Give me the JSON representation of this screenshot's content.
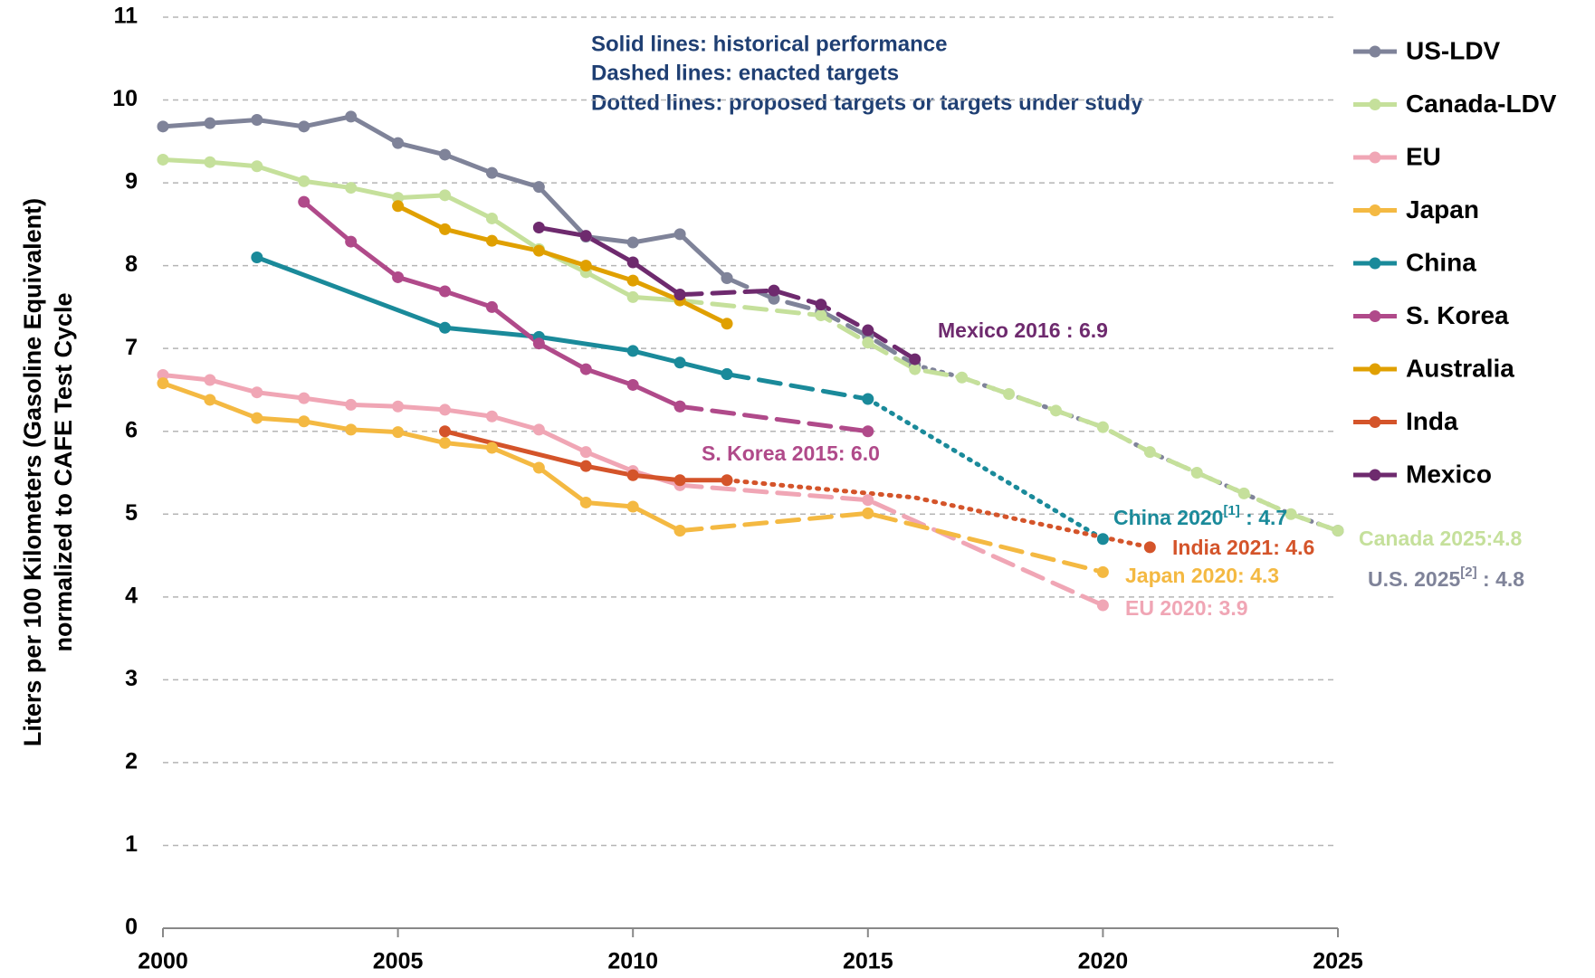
{
  "chart_data": {
    "type": "line",
    "ylabel": [
      "Liters per 100 Kilometers  (Gasoline Equivalent)",
      "normalized to CAFE Test Cycle"
    ],
    "notes": [
      "Solid lines: historical performance",
      "Dashed lines: enacted targets",
      "Dotted lines: proposed targets or targets under study"
    ],
    "xlim": [
      2000,
      2025
    ],
    "xticks": [
      2000,
      2005,
      2010,
      2015,
      2020,
      2025
    ],
    "ylim": [
      0,
      11
    ],
    "yticks": [
      0,
      1,
      2,
      3,
      4,
      5,
      6,
      7,
      8,
      9,
      10,
      11
    ],
    "grid": true,
    "legend": "right",
    "series": [
      {
        "name": "US-LDV",
        "color": "#7f8399",
        "segments": [
          {
            "style": "solid",
            "x": [
              2000,
              2001,
              2002,
              2003,
              2004,
              2005,
              2006,
              2007,
              2008,
              2009,
              2010,
              2011,
              2012
            ],
            "values": [
              9.68,
              9.72,
              9.76,
              9.68,
              9.8,
              9.48,
              9.34,
              9.12,
              8.95,
              8.35,
              8.28,
              8.38,
              7.85
            ]
          },
          {
            "style": "dashed",
            "x": [
              2012,
              2013,
              2014,
              2015,
              2016
            ],
            "values": [
              7.85,
              7.6,
              7.45,
              7.15,
              6.8
            ]
          },
          {
            "style": "dotted",
            "x": [
              2016,
              2017,
              2018,
              2019,
              2020,
              2021,
              2022,
              2023,
              2024,
              2025
            ],
            "values": [
              6.8,
              6.65,
              6.45,
              6.25,
              6.05,
              5.75,
              5.5,
              5.25,
              5.0,
              4.8
            ]
          }
        ]
      },
      {
        "name": "Canada-LDV",
        "color": "#c5e09b",
        "segments": [
          {
            "style": "solid",
            "x": [
              2000,
              2001,
              2002,
              2003,
              2004,
              2005,
              2006,
              2007,
              2008,
              2009,
              2010,
              2011
            ],
            "values": [
              9.28,
              9.25,
              9.2,
              9.02,
              8.94,
              8.82,
              8.85,
              8.57,
              8.2,
              7.92,
              7.62,
              7.58
            ]
          },
          {
            "style": "dashed",
            "x": [
              2011,
              2014,
              2015,
              2016,
              2017,
              2018,
              2019,
              2020,
              2021,
              2022,
              2023,
              2024,
              2025
            ],
            "values": [
              7.58,
              7.4,
              7.07,
              6.75,
              6.65,
              6.45,
              6.25,
              6.05,
              5.75,
              5.5,
              5.25,
              5.0,
              4.8
            ]
          }
        ]
      },
      {
        "name": "EU",
        "color": "#f0a6b5",
        "segments": [
          {
            "style": "solid",
            "x": [
              2000,
              2001,
              2002,
              2003,
              2004,
              2005,
              2006,
              2007,
              2008,
              2009,
              2010,
              2011
            ],
            "values": [
              6.68,
              6.62,
              6.47,
              6.4,
              6.32,
              6.3,
              6.26,
              6.18,
              6.02,
              5.75,
              5.52,
              5.35
            ]
          },
          {
            "style": "dashed",
            "x": [
              2011,
              2015,
              2020
            ],
            "values": [
              5.35,
              5.17,
              3.9
            ]
          }
        ]
      },
      {
        "name": "Japan",
        "color": "#f4b942",
        "segments": [
          {
            "style": "solid",
            "x": [
              2000,
              2001,
              2002,
              2003,
              2004,
              2005,
              2006,
              2007,
              2008,
              2009,
              2010,
              2011
            ],
            "values": [
              6.58,
              6.38,
              6.16,
              6.12,
              6.02,
              5.99,
              5.86,
              5.8,
              5.56,
              5.14,
              5.09,
              4.8
            ]
          },
          {
            "style": "dashed",
            "x": [
              2011,
              2015,
              2020
            ],
            "values": [
              4.8,
              5.01,
              4.3
            ]
          }
        ]
      },
      {
        "name": "China",
        "color": "#1a8a9a",
        "segments": [
          {
            "style": "solid",
            "x": [
              2002,
              2006,
              2008,
              2010,
              2011,
              2012
            ],
            "values": [
              8.1,
              7.25,
              7.14,
              6.97,
              6.83,
              6.69
            ]
          },
          {
            "style": "dashed",
            "x": [
              2012,
              2015
            ],
            "values": [
              6.69,
              6.39
            ]
          },
          {
            "style": "dotted",
            "x": [
              2015,
              2020
            ],
            "values": [
              6.39,
              4.7
            ]
          }
        ]
      },
      {
        "name": "S. Korea",
        "color": "#b04a8a",
        "segments": [
          {
            "style": "solid",
            "x": [
              2003,
              2004,
              2005,
              2006,
              2007,
              2008,
              2009,
              2010,
              2011
            ],
            "values": [
              8.77,
              8.29,
              7.86,
              7.69,
              7.5,
              7.06,
              6.75,
              6.56,
              6.3
            ]
          },
          {
            "style": "dashed",
            "x": [
              2011,
              2015
            ],
            "values": [
              6.3,
              6.0
            ]
          }
        ]
      },
      {
        "name": "Australia",
        "color": "#e0a000",
        "segments": [
          {
            "style": "solid",
            "x": [
              2005,
              2006,
              2007,
              2008,
              2009,
              2010,
              2011,
              2012
            ],
            "values": [
              8.72,
              8.44,
              8.3,
              8.18,
              8.0,
              7.82,
              7.58,
              7.3
            ]
          }
        ]
      },
      {
        "name": "Inda",
        "color": "#d4542a",
        "segments": [
          {
            "style": "solid",
            "x": [
              2006,
              2009,
              2010,
              2011,
              2012
            ],
            "values": [
              6.0,
              5.58,
              5.47,
              5.41,
              5.41
            ]
          },
          {
            "style": "dotted",
            "x": [
              2012,
              2016,
              2021
            ],
            "values": [
              5.41,
              5.2,
              4.6
            ]
          }
        ]
      },
      {
        "name": "Mexico",
        "color": "#6e2a6e",
        "segments": [
          {
            "style": "solid",
            "x": [
              2008,
              2009,
              2010,
              2011
            ],
            "values": [
              8.46,
              8.36,
              8.04,
              7.65
            ]
          },
          {
            "style": "dashed",
            "x": [
              2011,
              2013,
              2014,
              2015,
              2016
            ],
            "values": [
              7.65,
              7.7,
              7.53,
              7.22,
              6.87
            ]
          }
        ]
      }
    ],
    "annotations": [
      {
        "text": "Mexico 2016 : 6.9",
        "color": "#6e2a6e"
      },
      {
        "text": "S. Korea 2015: 6.0",
        "color": "#b04a8a"
      },
      {
        "text": "China 2020",
        "sup": "[1]",
        "rest": " : 4.7",
        "color": "#1a8a9a"
      },
      {
        "text": "India 2021: 4.6",
        "color": "#d4542a"
      },
      {
        "text": "Japan 2020: 4.3",
        "color": "#f4b942"
      },
      {
        "text": "EU 2020: 3.9",
        "color": "#f0a6b5"
      },
      {
        "text": "Canada 2025:4.8",
        "color": "#c5e09b"
      },
      {
        "text": "U.S. 2025",
        "sup": "[2]",
        "rest": " : 4.8",
        "color": "#7f8399"
      }
    ]
  }
}
